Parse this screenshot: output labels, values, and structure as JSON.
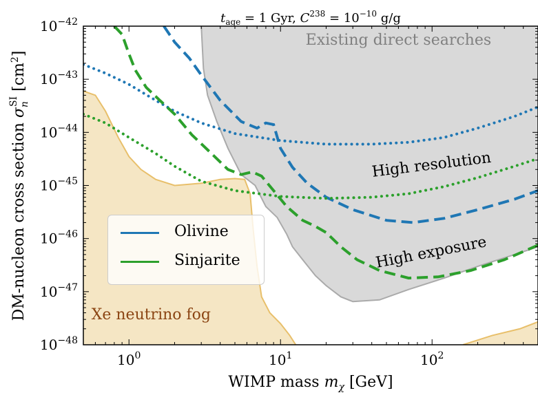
{
  "chart_data": {
    "type": "line",
    "title": "t_age = 1 Gyr, C^238 = 10^-10 g/g",
    "title_parts": {
      "t": "t",
      "age_sub": "age",
      "eq1": " = 1 Gyr, ",
      "C": "C",
      "sup": "238",
      "eq2": " = 10",
      "exp": "−10",
      "unit": " g/g"
    },
    "xlabel": "WIMP mass m_χ [GeV]",
    "xlabel_parts": {
      "text": "WIMP mass ",
      "m": "m",
      "sub": "χ",
      "unit": " [GeV]"
    },
    "ylabel": "DM-nucleon cross section σ_n^SI [cm²]",
    "ylabel_parts": {
      "text": "DM-nucleon cross section ",
      "sigma": "σ",
      "sub": "n",
      "sup": "SI",
      "unit": " [cm",
      "sq": "2",
      "close": "]"
    },
    "x_scale": "log",
    "y_scale": "log",
    "xlim": [
      0.5,
      500
    ],
    "ylim": [
      1e-48,
      1e-42
    ],
    "x_ticks": [
      {
        "value": 1,
        "base": "10",
        "exp": "0"
      },
      {
        "value": 10,
        "base": "10",
        "exp": "1"
      },
      {
        "value": 100,
        "base": "10",
        "exp": "2"
      }
    ],
    "y_ticks": [
      {
        "value": 1e-48,
        "base": "10",
        "exp": "−48"
      },
      {
        "value": 1e-47,
        "base": "10",
        "exp": "−47"
      },
      {
        "value": 1e-46,
        "base": "10",
        "exp": "−46"
      },
      {
        "value": 1e-45,
        "base": "10",
        "exp": "−45"
      },
      {
        "value": 1e-44,
        "base": "10",
        "exp": "−44"
      },
      {
        "value": 1e-43,
        "base": "10",
        "exp": "−43"
      },
      {
        "value": 1e-42,
        "base": "10",
        "exp": "−42"
      }
    ],
    "regions": [
      {
        "name": "Existing direct searches",
        "color": "#d9d9d9",
        "edge": "#aaaaaa",
        "boundary": [
          [
            3.0,
            1e-42
          ],
          [
            3.1,
            1.6e-43
          ],
          [
            3.3,
            5e-44
          ],
          [
            3.8,
            1.6e-44
          ],
          [
            4.5,
            5e-45
          ],
          [
            5.5,
            1.6e-45
          ],
          [
            6.8,
            1e-45
          ],
          [
            8,
            4e-46
          ],
          [
            9.5,
            2.5e-46
          ],
          [
            11,
            1.2e-46
          ],
          [
            12,
            7e-47
          ],
          [
            14,
            4e-47
          ],
          [
            17,
            2e-47
          ],
          [
            20,
            1.3e-47
          ],
          [
            25,
            8e-48
          ],
          [
            30,
            6.5e-48
          ],
          [
            45,
            7e-48
          ],
          [
            70,
            1.1e-47
          ],
          [
            120,
            1.8e-47
          ],
          [
            200,
            3e-47
          ],
          [
            350,
            5e-47
          ],
          [
            500,
            7e-47
          ]
        ]
      },
      {
        "name": "Xe neutrino fog",
        "color": "#f5e6c4",
        "edge": "#e8bf6a",
        "boundary": [
          [
            0.5,
            6e-44
          ],
          [
            0.6,
            5e-44
          ],
          [
            0.7,
            2.5e-44
          ],
          [
            0.85,
            8e-45
          ],
          [
            1.0,
            3.5e-45
          ],
          [
            1.2,
            2e-45
          ],
          [
            1.5,
            1.3e-45
          ],
          [
            2.0,
            1e-45
          ],
          [
            3.0,
            1.1e-45
          ],
          [
            4.0,
            1.3e-45
          ],
          [
            5.0,
            1.35e-45
          ],
          [
            5.8,
            1.3e-45
          ],
          [
            6.3,
            7e-46
          ],
          [
            6.6,
            1.5e-46
          ],
          [
            7.0,
            3e-47
          ],
          [
            7.5,
            8e-48
          ],
          [
            8.5,
            4e-48
          ],
          [
            10,
            2.5e-48
          ],
          [
            11.5,
            1.5e-48
          ],
          [
            12.6,
            1e-48
          ]
        ]
      },
      {
        "name": "Xe neutrino fog (high mass)",
        "color": "#f5e6c4",
        "edge": "#e8bf6a",
        "boundary": [
          [
            160,
            1e-48
          ],
          [
            250,
            1.5e-48
          ],
          [
            380,
            2e-48
          ],
          [
            500,
            2.7e-48
          ]
        ]
      }
    ],
    "series": [
      {
        "name": "Olivine",
        "scenario": "High resolution",
        "color": "#1f77b4",
        "dash": "dot",
        "points": [
          [
            0.5,
            1.9e-43
          ],
          [
            0.7,
            1.3e-43
          ],
          [
            1,
            8e-44
          ],
          [
            1.5,
            4e-44
          ],
          [
            2,
            2.5e-44
          ],
          [
            3,
            1.5e-44
          ],
          [
            5,
            9.5e-45
          ],
          [
            10,
            7e-45
          ],
          [
            20,
            6e-45
          ],
          [
            40,
            6e-45
          ],
          [
            70,
            6.5e-45
          ],
          [
            120,
            8e-45
          ],
          [
            200,
            1.2e-44
          ],
          [
            350,
            2e-44
          ],
          [
            500,
            3e-44
          ]
        ]
      },
      {
        "name": "Olivine",
        "scenario": "High exposure",
        "color": "#1f77b4",
        "dash": "dash",
        "points": [
          [
            1.7,
            1e-42
          ],
          [
            2,
            5e-43
          ],
          [
            2.5,
            2.5e-43
          ],
          [
            3,
            1.2e-43
          ],
          [
            4,
            4e-44
          ],
          [
            5.5,
            1.6e-44
          ],
          [
            7,
            1.2e-44
          ],
          [
            8,
            1.5e-44
          ],
          [
            9,
            1.4e-44
          ],
          [
            10,
            5e-45
          ],
          [
            12,
            2.2e-45
          ],
          [
            15,
            1.1e-45
          ],
          [
            20,
            6e-46
          ],
          [
            30,
            3.5e-46
          ],
          [
            50,
            2.2e-46
          ],
          [
            75,
            2e-46
          ],
          [
            120,
            2.4e-46
          ],
          [
            200,
            3.5e-46
          ],
          [
            350,
            5.5e-46
          ],
          [
            500,
            8e-46
          ]
        ]
      },
      {
        "name": "Sinjarite",
        "scenario": "High resolution",
        "color": "#2ca02c",
        "dash": "dot",
        "points": [
          [
            0.5,
            2.2e-44
          ],
          [
            0.7,
            1.5e-44
          ],
          [
            1,
            8e-45
          ],
          [
            1.5,
            4e-45
          ],
          [
            2,
            2.3e-45
          ],
          [
            3,
            1.2e-45
          ],
          [
            5,
            8e-46
          ],
          [
            10,
            6.2e-46
          ],
          [
            20,
            5.7e-46
          ],
          [
            40,
            6e-46
          ],
          [
            70,
            7e-46
          ],
          [
            120,
            9.5e-46
          ],
          [
            200,
            1.4e-45
          ],
          [
            350,
            2.3e-45
          ],
          [
            500,
            3.2e-45
          ]
        ]
      },
      {
        "name": "Sinjarite",
        "scenario": "High exposure",
        "color": "#2ca02c",
        "dash": "dash",
        "points": [
          [
            0.8,
            1e-42
          ],
          [
            0.9,
            7e-43
          ],
          [
            1,
            3e-43
          ],
          [
            1.1,
            1.5e-43
          ],
          [
            1.3,
            7e-44
          ],
          [
            1.6,
            4e-44
          ],
          [
            2,
            2.2e-44
          ],
          [
            2.6,
            9e-45
          ],
          [
            3.5,
            4e-45
          ],
          [
            4.5,
            2e-45
          ],
          [
            5.5,
            1.6e-45
          ],
          [
            6.5,
            1.8e-45
          ],
          [
            7.5,
            1.5e-45
          ],
          [
            9,
            8e-46
          ],
          [
            11,
            4e-46
          ],
          [
            14,
            2.2e-46
          ],
          [
            17,
            1.7e-46
          ],
          [
            20,
            1.3e-46
          ],
          [
            25,
            7e-47
          ],
          [
            32,
            4e-47
          ],
          [
            45,
            2.5e-47
          ],
          [
            70,
            1.8e-47
          ],
          [
            110,
            1.9e-47
          ],
          [
            180,
            2.5e-47
          ],
          [
            300,
            4e-47
          ],
          [
            500,
            7.5e-47
          ]
        ]
      }
    ],
    "annotations": [
      {
        "text": "Existing direct searches",
        "x": 60,
        "y": 4.5e-43,
        "color": "#808080",
        "rotate": 0
      },
      {
        "text": "High resolution",
        "x": 100,
        "y": 2e-45,
        "color": "#000000",
        "rotate": -7
      },
      {
        "text": "High exposure",
        "x": 100,
        "y": 4.5e-47,
        "color": "#000000",
        "rotate": -11
      },
      {
        "text": "Xe neutrino fog",
        "x": 1.4,
        "y": 3e-48,
        "color": "#8b4513",
        "rotate": 0
      }
    ],
    "legend": {
      "placement": "lower-left",
      "entries": [
        {
          "label": "Olivine",
          "color": "#1f77b4"
        },
        {
          "label": "Sinjarite",
          "color": "#2ca02c"
        }
      ]
    },
    "grid": false
  }
}
